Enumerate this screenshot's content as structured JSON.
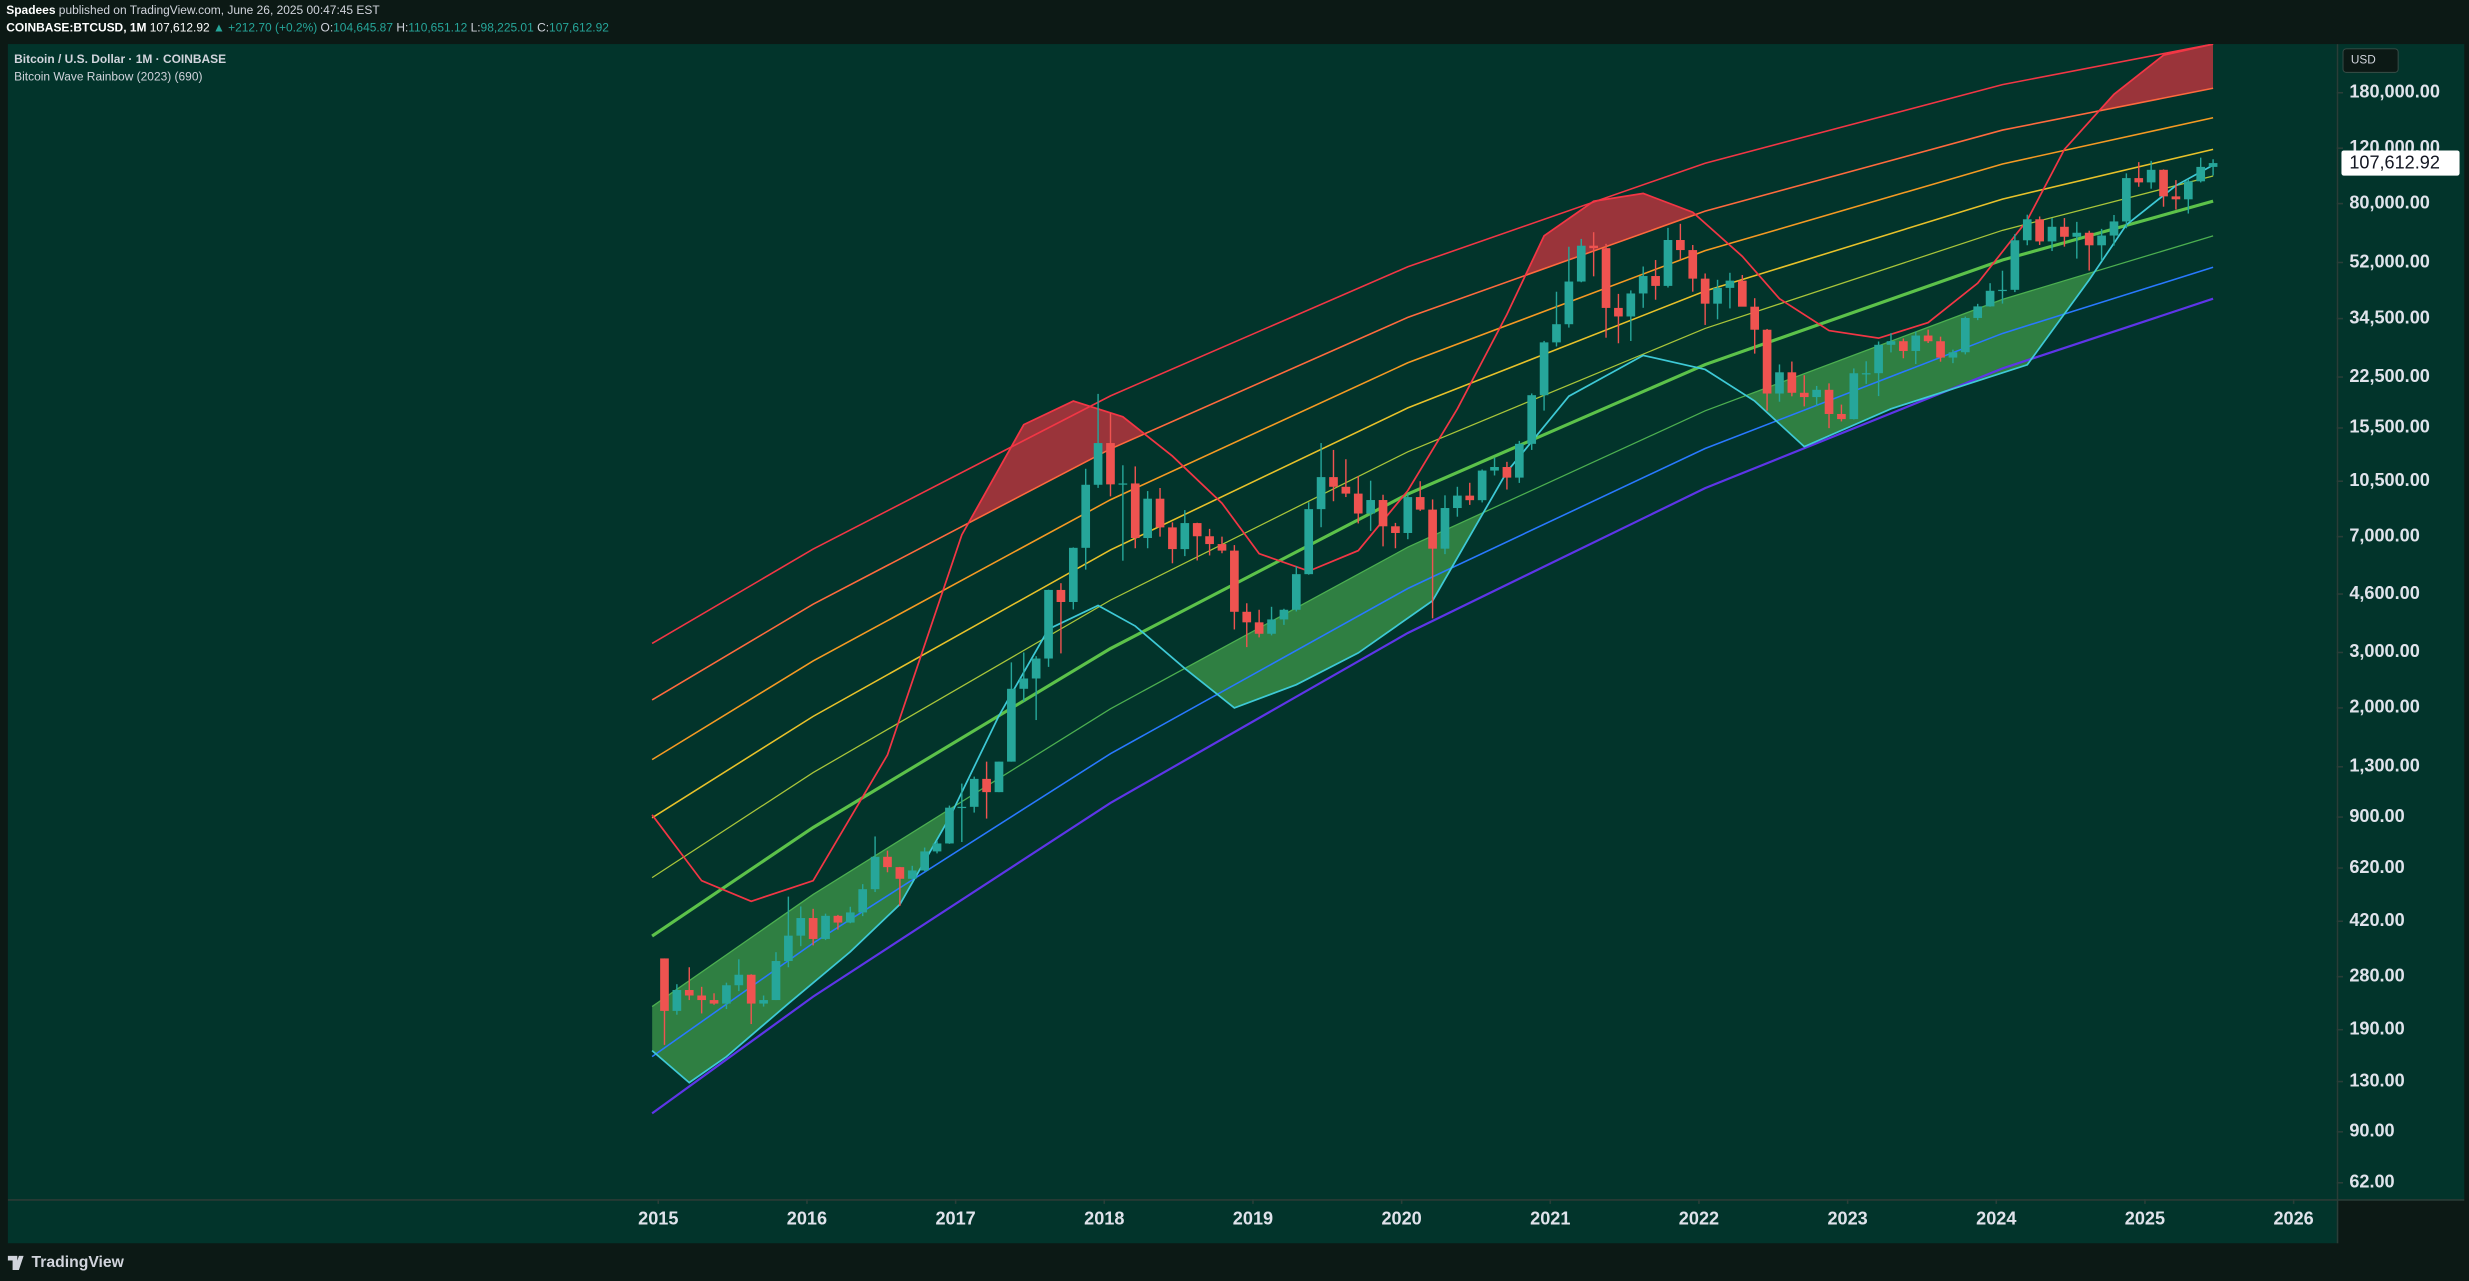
{
  "header": {
    "publisher": "Spadees",
    "published": "published on TradingView.com, June 26, 2025 00:47:45 EST",
    "symbol": "COINBASE:BTCUSD, 1M",
    "price": "107,612.92",
    "change": "▲ +212.70 (+0.2%)",
    "ohlc": [
      {
        "label": "O:",
        "value": "104,645.87"
      },
      {
        "label": "H:",
        "value": "110,651.12"
      },
      {
        "label": "L:",
        "value": "98,225.01"
      },
      {
        "label": "C:",
        "value": "107,612.92"
      }
    ]
  },
  "footer": {
    "brand": "TradingView"
  },
  "chart_data": {
    "type": "candlestick",
    "title": "Bitcoin / U.S. Dollar · 1M · COINBASE",
    "subtitle": "Bitcoin Wave Rainbow (2023) (690)",
    "currency": "USD",
    "log_scale": true,
    "grid": false,
    "up_color": "#26a69a",
    "down_color": "#ef5350",
    "xlim": [
      2010.625,
      2026.29
    ],
    "xticks": [
      2015,
      2016,
      2017,
      2018,
      2019,
      2020,
      2021,
      2022,
      2023,
      2024,
      2025,
      2026
    ],
    "ylim": [
      55,
      257000
    ],
    "yticks": [
      {
        "value": 180000,
        "label": "180,000.00"
      },
      {
        "value": 120000,
        "label": "120,000.00"
      },
      {
        "value": 80000,
        "label": "80,000.00"
      },
      {
        "value": 52000,
        "label": "52,000.00"
      },
      {
        "value": 34500,
        "label": "34,500.00"
      },
      {
        "value": 22500,
        "label": "22,500.00"
      },
      {
        "value": 15500,
        "label": "15,500.00"
      },
      {
        "value": 10500,
        "label": "10,500.00"
      },
      {
        "value": 7000,
        "label": "7,000.00"
      },
      {
        "value": 4600,
        "label": "4,600.00"
      },
      {
        "value": 3000,
        "label": "3,000.00"
      },
      {
        "value": 2000,
        "label": "2,000.00"
      },
      {
        "value": 1300,
        "label": "1,300.00"
      },
      {
        "value": 900,
        "label": "900.00"
      },
      {
        "value": 620,
        "label": "620.00"
      },
      {
        "value": 420,
        "label": "420.00"
      },
      {
        "value": 280,
        "label": "280.00"
      },
      {
        "value": 190,
        "label": "190.00"
      },
      {
        "value": 130,
        "label": "130.00"
      },
      {
        "value": 90,
        "label": "90.00"
      },
      {
        "value": 62,
        "label": "62.00"
      }
    ],
    "last_price": {
      "value": 107612.92,
      "label": "107,612.92"
    },
    "x": [
      "2015-01",
      "2015-02",
      "2015-03",
      "2015-04",
      "2015-05",
      "2015-06",
      "2015-07",
      "2015-08",
      "2015-09",
      "2015-10",
      "2015-11",
      "2015-12",
      "2016-01",
      "2016-02",
      "2016-03",
      "2016-04",
      "2016-05",
      "2016-06",
      "2016-07",
      "2016-08",
      "2016-09",
      "2016-10",
      "2016-11",
      "2016-12",
      "2017-01",
      "2017-02",
      "2017-03",
      "2017-04",
      "2017-05",
      "2017-06",
      "2017-07",
      "2017-08",
      "2017-09",
      "2017-10",
      "2017-11",
      "2017-12",
      "2018-01",
      "2018-02",
      "2018-03",
      "2018-04",
      "2018-05",
      "2018-06",
      "2018-07",
      "2018-08",
      "2018-09",
      "2018-10",
      "2018-11",
      "2018-12",
      "2019-01",
      "2019-02",
      "2019-03",
      "2019-04",
      "2019-05",
      "2019-06",
      "2019-07",
      "2019-08",
      "2019-09",
      "2019-10",
      "2019-11",
      "2019-12",
      "2020-01",
      "2020-02",
      "2020-03",
      "2020-04",
      "2020-05",
      "2020-06",
      "2020-07",
      "2020-08",
      "2020-09",
      "2020-10",
      "2020-11",
      "2020-12",
      "2021-01",
      "2021-02",
      "2021-03",
      "2021-04",
      "2021-05",
      "2021-06",
      "2021-07",
      "2021-08",
      "2021-09",
      "2021-10",
      "2021-11",
      "2021-12",
      "2022-01",
      "2022-02",
      "2022-03",
      "2022-04",
      "2022-05",
      "2022-06",
      "2022-07",
      "2022-08",
      "2022-09",
      "2022-10",
      "2022-11",
      "2022-12",
      "2023-01",
      "2023-02",
      "2023-03",
      "2023-04",
      "2023-05",
      "2023-06",
      "2023-07",
      "2023-08",
      "2023-09",
      "2023-10",
      "2023-11",
      "2023-12",
      "2024-01",
      "2024-02",
      "2024-03",
      "2024-04",
      "2024-05",
      "2024-06",
      "2024-07",
      "2024-08",
      "2024-09",
      "2024-10",
      "2024-11",
      "2024-12",
      "2025-01",
      "2025-02",
      "2025-03",
      "2025-04",
      "2025-05",
      "2025-06"
    ],
    "open": [
      320,
      218,
      254,
      244,
      236,
      230,
      263,
      284,
      230,
      236,
      314,
      378,
      430,
      369,
      437,
      416,
      448,
      531,
      673,
      624,
      573,
      609,
      700,
      742,
      964,
      970,
      1190,
      1080,
      1350,
      2300,
      2480,
      2870,
      4740,
      4340,
      6450,
      10230,
      13880,
      10260,
      10330,
      6930,
      9240,
      7490,
      6390,
      7730,
      7020,
      6630,
      6320,
      4040,
      3740,
      3440,
      3820,
      4100,
      5320,
      8560,
      10820,
      10080,
      9590,
      8290,
      9150,
      7550,
      7190,
      9350,
      8530,
      6410,
      8630,
      9450,
      9140,
      11350,
      11650,
      10780,
      13800,
      19700,
      28990,
      33110,
      45240,
      58800,
      57750,
      37300,
      35040,
      41460,
      47100,
      43820,
      61300,
      56950,
      46210,
      38480,
      43190,
      45540,
      37640,
      31800,
      19940,
      23290,
      20050,
      19430,
      20490,
      17170,
      16540,
      23130,
      23140,
      28480,
      29240,
      27220,
      30480,
      29230,
      25940,
      26970,
      34660,
      37720,
      42280,
      42580,
      61180,
      71330,
      60670,
      67530,
      62770,
      64640,
      58970,
      63330,
      70220,
      96410,
      93430,
      102430,
      84350,
      82550,
      94180,
      104645.87
    ],
    "high": [
      320,
      265,
      300,
      260,
      248,
      268,
      318,
      285,
      244,
      335,
      503,
      468,
      460,
      444,
      440,
      467,
      551,
      781,
      704,
      625,
      630,
      720,
      755,
      979,
      1150,
      1210,
      1350,
      1350,
      2790,
      3000,
      2920,
      4750,
      4980,
      6470,
      11500,
      19890,
      17250,
      11800,
      11700,
      9770,
      9990,
      7770,
      8500,
      7750,
      7410,
      7000,
      6580,
      4300,
      4100,
      4190,
      4130,
      5640,
      9000,
      13880,
      13200,
      12330,
      10900,
      10540,
      9510,
      7740,
      9580,
      10500,
      9190,
      9470,
      10080,
      10380,
      11440,
      12480,
      12100,
      14100,
      19950,
      29300,
      41990,
      58350,
      61790,
      64900,
      59600,
      41330,
      42400,
      50500,
      52950,
      67000,
      69000,
      59100,
      47990,
      45820,
      48230,
      47450,
      40050,
      31980,
      24670,
      25200,
      22800,
      21080,
      21480,
      18390,
      23960,
      25250,
      29180,
      31000,
      29840,
      31390,
      31820,
      30230,
      27490,
      35000,
      38430,
      44700,
      48970,
      64000,
      73780,
      72800,
      72000,
      71980,
      70000,
      65600,
      66500,
      73600,
      99800,
      108350,
      109360,
      102750,
      95000,
      95800,
      111980,
      110651.12
    ],
    "low": [
      170,
      212,
      236,
      214,
      228,
      221,
      252,
      198,
      225,
      236,
      300,
      350,
      352,
      366,
      395,
      414,
      436,
      520,
      601,
      470,
      572,
      606,
      690,
      740,
      750,
      930,
      890,
      1080,
      1350,
      2100,
      1830,
      2700,
      2980,
      4110,
      5500,
      10000,
      9400,
      5870,
      6430,
      6430,
      7000,
      5760,
      6070,
      5880,
      6100,
      6200,
      3550,
      3120,
      3350,
      3400,
      3670,
      4050,
      5300,
      7500,
      9070,
      9350,
      7710,
      7300,
      6520,
      6430,
      6870,
      8450,
      3850,
      6160,
      8100,
      8830,
      8990,
      10950,
      9880,
      10370,
      13200,
      17600,
      28130,
      32300,
      45000,
      47000,
      30000,
      28800,
      29280,
      37330,
      39600,
      43300,
      53260,
      42000,
      32930,
      34320,
      37170,
      37700,
      26700,
      17590,
      18780,
      19540,
      18150,
      18190,
      15480,
      16260,
      16500,
      21400,
      19570,
      26940,
      25810,
      24750,
      28860,
      25170,
      24900,
      26550,
      34110,
      37630,
      38500,
      41880,
      59000,
      59120,
      56550,
      58400,
      53500,
      49000,
      52550,
      58860,
      66800,
      90500,
      89200,
      78200,
      76600,
      74400,
      93400,
      98225.01
    ],
    "close": [
      218,
      254,
      244,
      236,
      230,
      263,
      284,
      230,
      236,
      314,
      378,
      430,
      369,
      437,
      416,
      448,
      531,
      673,
      624,
      573,
      609,
      700,
      742,
      964,
      970,
      1190,
      1080,
      1350,
      2300,
      2480,
      2870,
      4740,
      4340,
      6450,
      10230,
      13880,
      10260,
      10330,
      6930,
      9240,
      7490,
      6390,
      7730,
      7020,
      6630,
      6320,
      4040,
      3740,
      3440,
      3820,
      4100,
      5320,
      8560,
      10820,
      10080,
      9590,
      8290,
      9150,
      7550,
      7190,
      9350,
      8530,
      6410,
      8630,
      9450,
      9140,
      11350,
      11650,
      10780,
      13800,
      19700,
      28990,
      33110,
      45240,
      58800,
      57750,
      37300,
      35040,
      41460,
      47100,
      43820,
      61300,
      56950,
      46210,
      38480,
      43190,
      45540,
      37640,
      31800,
      19940,
      23290,
      20050,
      19430,
      20490,
      17170,
      16540,
      23130,
      23140,
      28480,
      29240,
      27220,
      30480,
      29230,
      25940,
      26970,
      34660,
      37720,
      42280,
      42580,
      61180,
      71330,
      60670,
      67530,
      62770,
      64640,
      58970,
      63330,
      70220,
      96410,
      93430,
      102430,
      84350,
      82550,
      94180,
      104640,
      107612.92
    ],
    "bands": [
      {
        "color": "#f23645",
        "x": [
          "2014-12",
          "2016-01",
          "2018-01",
          "2020-01",
          "2022-01",
          "2024-01",
          "2025-06"
        ],
        "values": [
          3205,
          6390,
          19600,
          50400,
          107500,
          191000,
          257000
        ]
      },
      {
        "color": "#ff6a3d",
        "x": [
          "2014-12",
          "2016-01",
          "2018-01",
          "2020-01",
          "2022-01",
          "2024-01",
          "2025-06"
        ],
        "values": [
          2120,
          4270,
          13300,
          34800,
          75700,
          137000,
          186000
        ]
      },
      {
        "color": "#f59a23",
        "x": [
          "2014-12",
          "2016-01",
          "2018-01",
          "2020-01",
          "2022-01",
          "2024-01",
          "2025-06"
        ],
        "values": [
          1370,
          2820,
          9170,
          24970,
          56700,
          106900,
          149900
        ]
      },
      {
        "color": "#e8c22a",
        "x": [
          "2014-12",
          "2016-01",
          "2018-01",
          "2020-01",
          "2022-01",
          "2024-01",
          "2025-06"
        ],
        "values": [
          895,
          1880,
          6350,
          17950,
          42200,
          82700,
          119000
        ]
      },
      {
        "color": "#a9c53a",
        "x": [
          "2014-12",
          "2016-01",
          "2018-01",
          "2020-01",
          "2022-01",
          "2024-01",
          "2025-06"
        ],
        "values": [
          578,
          1246,
          4400,
          13020,
          32100,
          65800,
          97900
        ]
      },
      {
        "color": "#5cc24a",
        "x": [
          "2014-12",
          "2016-01",
          "2018-01",
          "2020-01",
          "2022-01",
          "2024-01",
          "2025-06"
        ],
        "values": [
          377,
          834,
          3087,
          9560,
          24650,
          52960,
          81450
        ]
      },
      {
        "color": "#4caf50",
        "x": [
          "2014-12",
          "2016-01",
          "2018-01",
          "2020-01",
          "2022-01",
          "2024-01",
          "2025-06"
        ],
        "values": [
          225,
          511,
          1987,
          6480,
          17570,
          39700,
          63200
        ]
      },
      {
        "color": "#2979ff",
        "x": [
          "2014-12",
          "2016-01",
          "2018-01",
          "2020-01",
          "2022-01",
          "2024-01",
          "2025-06"
        ],
        "values": [
          156,
          358,
          1431,
          4790,
          13340,
          30950,
          50200
        ]
      },
      {
        "color": "#5e35e8",
        "x": [
          "2014-12",
          "2016-01",
          "2018-01",
          "2020-01",
          "2022-01",
          "2024-01",
          "2025-06"
        ],
        "values": [
          103,
          242,
          998,
          3460,
          9980,
          23960,
          39900
        ]
      }
    ],
    "waves": [
      {
        "color": "#f23645",
        "fill": "rgba(214,52,64,0.72)",
        "x": [
          "2014-12",
          "2015-04",
          "2015-08",
          "2016-01",
          "2016-07",
          "2017-01",
          "2017-06",
          "2017-10",
          "2018-02",
          "2018-06",
          "2018-10",
          "2019-01",
          "2019-05",
          "2019-09",
          "2020-01",
          "2020-05",
          "2020-09",
          "2020-12",
          "2021-04",
          "2021-08",
          "2021-12",
          "2022-04",
          "2022-07",
          "2022-11",
          "2023-03",
          "2023-07",
          "2023-11",
          "2024-03",
          "2024-06",
          "2024-10",
          "2025-02",
          "2025-06"
        ],
        "values": [
          915,
          565,
          486,
          565,
          1418,
          7090,
          15880,
          18870,
          16820,
          12620,
          8940,
          6180,
          5440,
          6320,
          9800,
          17830,
          35580,
          63200,
          81400,
          86200,
          75100,
          54400,
          39900,
          31600,
          29900,
          33500,
          44700,
          70900,
          119000,
          178000,
          237000,
          257000
        ]
      },
      {
        "color": "#3ec9d6",
        "fill": "rgba(76,175,80,0.62)",
        "x": [
          "2014-12",
          "2015-03",
          "2015-06",
          "2015-11",
          "2016-04",
          "2016-08",
          "2016-12",
          "2017-04",
          "2017-08",
          "2017-12",
          "2018-03",
          "2018-07",
          "2018-11",
          "2019-04",
          "2019-09",
          "2020-03",
          "2020-09",
          "2021-02",
          "2021-08",
          "2022-01",
          "2022-05",
          "2022-09",
          "2023-04",
          "2024-03",
          "2024-08",
          "2024-11",
          "2025-03",
          "2025-06"
        ],
        "values": [
          163,
          129,
          156,
          230,
          336,
          475,
          895,
          1890,
          3560,
          4230,
          3640,
          2670,
          2000,
          2370,
          2990,
          4380,
          11250,
          19550,
          26360,
          23780,
          18870,
          13520,
          17830,
          24600,
          45800,
          68500,
          91300,
          106000
        ]
      }
    ]
  }
}
